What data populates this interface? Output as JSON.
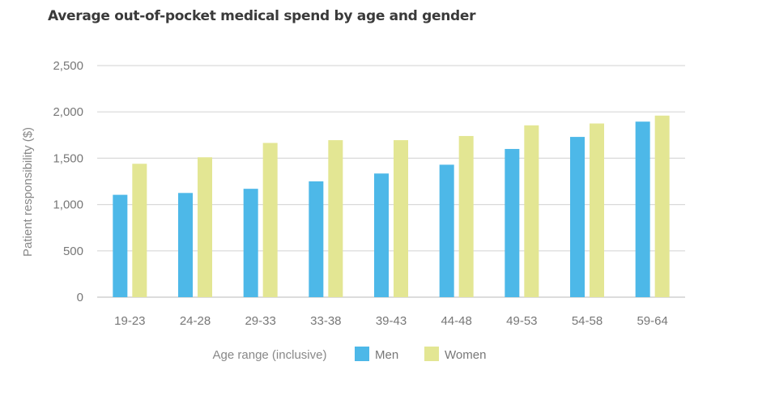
{
  "chart_data": {
    "type": "bar",
    "title": "Average out-of-pocket medical spend by age and gender",
    "xlabel": "Age range (inclusive)",
    "ylabel": "Patient responsibility ($)",
    "categories": [
      "19-23",
      "24-28",
      "29-33",
      "33-38",
      "39-43",
      "44-48",
      "49-53",
      "54-58",
      "59-64"
    ],
    "series": [
      {
        "name": "Men",
        "color": "#4db8e8",
        "values": [
          1105,
          1125,
          1170,
          1250,
          1335,
          1430,
          1600,
          1730,
          1895
        ]
      },
      {
        "name": "Women",
        "color": "#e3e693",
        "values": [
          1440,
          1510,
          1665,
          1695,
          1695,
          1740,
          1855,
          1875,
          1960
        ]
      }
    ],
    "ylim": [
      0,
      2500
    ],
    "yticks": [
      0,
      500,
      1000,
      1500,
      2000,
      2500
    ],
    "ytick_labels": [
      "0",
      "500",
      "1,000",
      "1,500",
      "2,000",
      "2,500"
    ],
    "grid": true,
    "legend_position": "bottom"
  }
}
